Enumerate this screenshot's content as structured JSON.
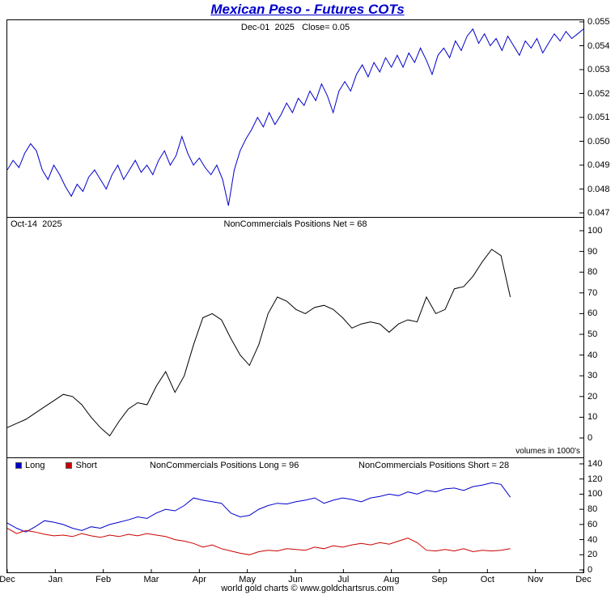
{
  "title": "Mexican Peso - Futures COTs",
  "footer": "world gold charts © www.goldchartsrus.com",
  "colors": {
    "title_blue": "#0000cc",
    "price_line": "#0000cc",
    "net_line": "#000000",
    "long_line": "#0000cc",
    "short_line": "#cc0000"
  },
  "chart_data": {
    "type": "line",
    "x_labels": [
      "Dec",
      "Jan",
      "Feb",
      "Mar",
      "Apr",
      "May",
      "Jun",
      "Jul",
      "Aug",
      "Sep",
      "Oct",
      "Nov",
      "Dec"
    ],
    "panels": [
      {
        "name": "price",
        "annotation": "Dec-01  2025   Close= 0.05",
        "y_min": 0.047,
        "y_max": 0.055,
        "ticks": [
          {
            "v": 0.055,
            "label": "0.055"
          },
          {
            "v": 0.054,
            "label": "0.054"
          },
          {
            "v": 0.053,
            "label": "0.053"
          },
          {
            "v": 0.052,
            "label": "0.052"
          },
          {
            "v": 0.051,
            "label": "0.051"
          },
          {
            "v": 0.05,
            "label": "0.050"
          },
          {
            "v": 0.049,
            "label": "0.049"
          },
          {
            "v": 0.048,
            "label": "0.048"
          },
          {
            "v": 0.047,
            "label": "0.047"
          }
        ],
        "series": [
          {
            "name": "price",
            "color": "#0000cc",
            "end_fraction": 1.0,
            "values": [
              0.0488,
              0.0492,
              0.0489,
              0.0495,
              0.0499,
              0.0496,
              0.0488,
              0.0484,
              0.049,
              0.0486,
              0.0481,
              0.0477,
              0.0482,
              0.0479,
              0.0485,
              0.0488,
              0.0484,
              0.048,
              0.0486,
              0.049,
              0.0484,
              0.0488,
              0.0492,
              0.0487,
              0.049,
              0.0486,
              0.0492,
              0.0496,
              0.049,
              0.0494,
              0.0502,
              0.0495,
              0.049,
              0.0493,
              0.0489,
              0.0486,
              0.049,
              0.0484,
              0.0473,
              0.0488,
              0.0496,
              0.0501,
              0.0505,
              0.051,
              0.0506,
              0.0512,
              0.0507,
              0.0511,
              0.0516,
              0.0512,
              0.0518,
              0.0515,
              0.0521,
              0.0517,
              0.0524,
              0.0519,
              0.0512,
              0.0521,
              0.0525,
              0.0521,
              0.0528,
              0.0532,
              0.0527,
              0.0533,
              0.0529,
              0.0535,
              0.0531,
              0.0536,
              0.0531,
              0.0537,
              0.0533,
              0.0539,
              0.0534,
              0.0528,
              0.0536,
              0.0539,
              0.0535,
              0.0542,
              0.0538,
              0.0544,
              0.0547,
              0.0541,
              0.0545,
              0.054,
              0.0543,
              0.0538,
              0.0544,
              0.054,
              0.0536,
              0.0542,
              0.0539,
              0.0543,
              0.0537,
              0.0541,
              0.0545,
              0.0542,
              0.0546,
              0.0543,
              0.0545,
              0.0547
            ]
          }
        ]
      },
      {
        "name": "net",
        "date_label": "Oct-14  2025",
        "annotation": "NonCommercials Positions Net = 68",
        "note": "volumes in 1000's",
        "y_min": 0,
        "y_max": 100,
        "ticks": [
          {
            "v": 100,
            "label": "100"
          },
          {
            "v": 90,
            "label": "90"
          },
          {
            "v": 80,
            "label": "80"
          },
          {
            "v": 70,
            "label": "70"
          },
          {
            "v": 60,
            "label": "60"
          },
          {
            "v": 50,
            "label": "50"
          },
          {
            "v": 40,
            "label": "40"
          },
          {
            "v": 30,
            "label": "30"
          },
          {
            "v": 20,
            "label": "20"
          },
          {
            "v": 10,
            "label": "10"
          },
          {
            "v": 0,
            "label": "0"
          }
        ],
        "series": [
          {
            "name": "net",
            "color": "#000000",
            "end_fraction": 0.873,
            "values": [
              5,
              7,
              9,
              12,
              15,
              18,
              21,
              20,
              16,
              10,
              5,
              1,
              8,
              14,
              17,
              16,
              25,
              32,
              22,
              30,
              45,
              58,
              60,
              57,
              48,
              40,
              35,
              45,
              60,
              68,
              66,
              62,
              60,
              63,
              64,
              62,
              58,
              53,
              55,
              56,
              55,
              51,
              55,
              57,
              56,
              68,
              60,
              62,
              72,
              73,
              78,
              85,
              91,
              88,
              68
            ]
          }
        ]
      },
      {
        "name": "long_short",
        "legend": [
          {
            "label": "Long",
            "color": "#0000cc"
          },
          {
            "label": "Short",
            "color": "#cc0000"
          }
        ],
        "annotation_long": "NonCommercials Positions Long = 96",
        "annotation_short": "NonCommercials Positions Short = 28",
        "y_min": 0,
        "y_max": 140,
        "ticks": [
          {
            "v": 140,
            "label": "140"
          },
          {
            "v": 120,
            "label": "120"
          },
          {
            "v": 100,
            "label": "100"
          },
          {
            "v": 80,
            "label": "80"
          },
          {
            "v": 60,
            "label": "60"
          },
          {
            "v": 40,
            "label": "40"
          },
          {
            "v": 20,
            "label": "20"
          },
          {
            "v": 0,
            "label": "0"
          }
        ],
        "series": [
          {
            "name": "Long",
            "color": "#0000cc",
            "end_fraction": 0.873,
            "values": [
              62,
              55,
              50,
              57,
              65,
              63,
              60,
              55,
              52,
              57,
              55,
              60,
              63,
              66,
              70,
              68,
              75,
              80,
              78,
              85,
              95,
              92,
              90,
              88,
              75,
              70,
              72,
              80,
              85,
              88,
              87,
              90,
              92,
              95,
              88,
              92,
              95,
              93,
              90,
              95,
              97,
              100,
              98,
              103,
              100,
              105,
              103,
              107,
              108,
              105,
              110,
              112,
              115,
              113,
              96
            ]
          },
          {
            "name": "Short",
            "color": "#cc0000",
            "end_fraction": 0.873,
            "values": [
              55,
              48,
              52,
              50,
              47,
              45,
              46,
              44,
              48,
              45,
              43,
              46,
              44,
              47,
              45,
              48,
              46,
              44,
              40,
              38,
              35,
              30,
              33,
              28,
              25,
              22,
              20,
              24,
              26,
              25,
              28,
              27,
              26,
              30,
              28,
              32,
              30,
              33,
              35,
              33,
              36,
              34,
              38,
              42,
              36,
              26,
              25,
              27,
              25,
              28,
              24,
              26,
              25,
              26,
              28
            ]
          }
        ]
      }
    ]
  }
}
